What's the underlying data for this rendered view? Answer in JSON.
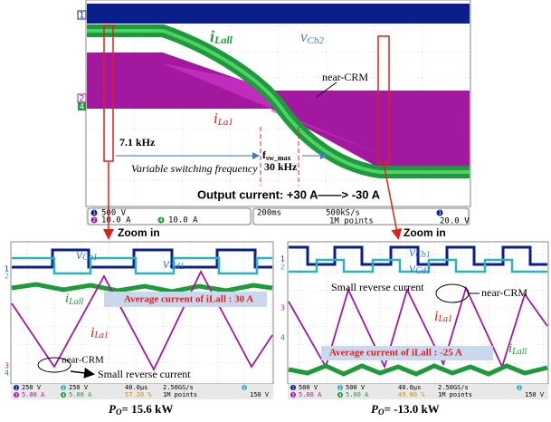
{
  "top": {
    "channels": [
      "1",
      "2",
      "4"
    ],
    "i_lall": {
      "sym": "i",
      "sub": "Lall"
    },
    "v_cb2": {
      "sym": "v",
      "sub": "Cb2"
    },
    "near_crm": "near-CRM",
    "i_la1": {
      "sym": "i",
      "sub": "La1"
    },
    "freq_low": "7.1 kHz",
    "variable": "Variable switching frequency",
    "fsw": {
      "sym": "f",
      "sub": "sw_max"
    },
    "freq_high": "30 kHz",
    "output": "Output current: +30 A——> -30 A",
    "status": {
      "ch1": "1",
      "ch1_scale": "500 V",
      "ch2": "2",
      "ch2_scale": "10.0 A",
      "ch4": "4",
      "ch4_scale": "10.0 A",
      "time": "200ms",
      "rate": "500kS/s",
      "points": "1M points",
      "trig_ch": "1",
      "trig": "20.0 V"
    }
  },
  "zoom": "Zoom in",
  "left": {
    "channels": [
      "1",
      "2",
      "3",
      "4"
    ],
    "v_cb1": {
      "sym": "v",
      "sub": "Cb1"
    },
    "v_cd1": {
      "sym": "v",
      "sub": "Cd1"
    },
    "i_lall": {
      "sym": "i",
      "sub": "Lall"
    },
    "avg": "Average current of iLall : 30 A",
    "i_la1": {
      "sym": "i",
      "sub": "La1"
    },
    "near_crm": "near-CRM",
    "reverse": "Small reverse current",
    "status": {
      "ch1": "1",
      "ch1_scale": "250 V",
      "ch2": "2",
      "ch2_scale": "250 V",
      "ch3": "3",
      "ch3_scale": "5.00 A",
      "ch4": "4",
      "ch4_scale": "5.00 A",
      "time": "40.0µs",
      "pos": "57.20 %",
      "rate": "2.50GS/s",
      "points": "1M points",
      "trig_ch": "2",
      "trig": "150 V"
    },
    "caption": {
      "sym": "P",
      "sub": "O",
      "text": "= 15.6 kW"
    }
  },
  "right": {
    "channels": [
      "1",
      "2",
      "3",
      "4"
    ],
    "v_cb1": {
      "sym": "v",
      "sub": "Cb1"
    },
    "v_cd1": {
      "sym": "v",
      "sub": "Cd1"
    },
    "reverse": "Small reverse current",
    "near_crm": "near-CRM",
    "i_la1": {
      "sym": "i",
      "sub": "La1"
    },
    "i_lall": {
      "sym": "i",
      "sub": "Lall"
    },
    "avg": "Average current of iLall : -25 A",
    "status": {
      "ch1": "1",
      "ch1_scale": "500 V",
      "ch2": "2",
      "ch2_scale": "500 V",
      "ch3": "3",
      "ch3_scale": "5.00 A",
      "ch4": "4",
      "ch4_scale": "5.00 A",
      "time": "40.0µs",
      "pos": "49.80 %",
      "rate": "2.50GS/s",
      "points": "1M points",
      "trig_ch": "2",
      "trig": "150 V"
    },
    "caption": {
      "sym": "P",
      "sub": "O",
      "text": "= -13.0 kW"
    }
  }
}
